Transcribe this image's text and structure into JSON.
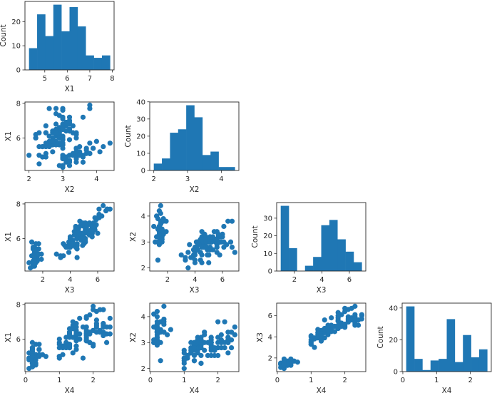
{
  "chart_data": {
    "type": "pairplot",
    "color": "#1f77b4",
    "variables": {
      "X1": [
        5.1,
        4.9,
        4.7,
        4.6,
        5.0,
        5.4,
        4.6,
        5.0,
        4.4,
        4.9,
        5.4,
        4.8,
        4.8,
        4.3,
        5.8,
        5.7,
        5.4,
        5.1,
        5.7,
        5.1,
        5.4,
        5.1,
        4.6,
        5.1,
        4.8,
        5.0,
        5.0,
        5.2,
        5.2,
        4.7,
        4.8,
        5.4,
        5.2,
        5.5,
        4.9,
        5.0,
        5.5,
        4.9,
        4.4,
        5.1,
        5.0,
        4.5,
        4.4,
        5.0,
        5.1,
        4.8,
        5.1,
        4.6,
        5.3,
        5.0,
        7.0,
        6.4,
        6.9,
        5.5,
        6.5,
        5.7,
        6.3,
        4.9,
        6.6,
        5.2,
        5.0,
        5.9,
        6.0,
        6.1,
        5.6,
        6.7,
        5.6,
        5.8,
        6.2,
        5.6,
        5.9,
        6.1,
        6.3,
        6.1,
        6.4,
        6.6,
        6.8,
        6.7,
        6.0,
        5.7,
        5.5,
        5.5,
        5.8,
        6.0,
        5.4,
        6.0,
        6.7,
        6.3,
        5.6,
        5.5,
        5.5,
        6.1,
        5.8,
        5.0,
        5.6,
        5.7,
        5.7,
        6.2,
        5.1,
        5.7,
        6.3,
        5.8,
        7.1,
        6.3,
        6.5,
        7.6,
        4.9,
        7.3,
        6.7,
        7.2,
        6.5,
        6.4,
        6.8,
        5.7,
        5.8,
        6.4,
        6.5,
        7.7,
        7.7,
        6.0,
        6.9,
        5.6,
        7.7,
        6.3,
        6.7,
        7.2,
        6.2,
        6.1,
        6.4,
        7.2,
        7.4,
        7.9,
        6.4,
        6.3,
        6.1,
        7.7,
        6.3,
        6.4,
        6.0,
        6.9,
        6.7,
        6.9,
        5.8,
        6.8,
        6.7,
        6.7,
        6.3,
        6.5,
        6.2,
        5.9
      ],
      "X2": [
        3.5,
        3.0,
        3.2,
        3.1,
        3.6,
        3.9,
        3.4,
        3.4,
        2.9,
        3.1,
        3.7,
        3.4,
        3.0,
        3.0,
        4.0,
        4.4,
        3.9,
        3.5,
        3.8,
        3.8,
        3.4,
        3.7,
        3.6,
        3.3,
        3.4,
        3.0,
        3.4,
        3.5,
        3.4,
        3.2,
        3.1,
        3.4,
        4.1,
        4.2,
        3.1,
        3.2,
        3.5,
        3.6,
        3.0,
        3.4,
        3.5,
        2.3,
        3.2,
        3.5,
        3.8,
        3.0,
        3.8,
        3.2,
        3.7,
        3.3,
        3.2,
        3.2,
        3.1,
        2.3,
        2.8,
        2.8,
        3.3,
        2.4,
        2.9,
        2.7,
        2.0,
        3.0,
        2.2,
        2.9,
        2.9,
        3.1,
        3.0,
        2.7,
        2.2,
        2.5,
        3.2,
        2.8,
        2.5,
        2.8,
        2.9,
        3.0,
        2.8,
        3.0,
        2.9,
        2.6,
        2.4,
        2.4,
        2.7,
        2.7,
        3.0,
        3.4,
        3.1,
        2.3,
        3.0,
        2.5,
        2.6,
        3.0,
        2.6,
        2.3,
        2.7,
        3.0,
        2.9,
        2.9,
        2.5,
        2.8,
        3.3,
        2.7,
        3.0,
        2.9,
        3.0,
        3.0,
        2.5,
        2.9,
        2.5,
        3.6,
        3.2,
        2.7,
        3.0,
        2.5,
        2.8,
        3.2,
        3.0,
        3.8,
        2.6,
        2.2,
        3.2,
        2.8,
        2.8,
        2.7,
        3.3,
        3.2,
        2.8,
        3.0,
        2.8,
        3.0,
        2.8,
        3.8,
        2.8,
        2.8,
        2.6,
        3.0,
        3.4,
        3.1,
        3.0,
        3.1,
        3.1,
        3.1,
        2.7,
        3.2,
        3.3,
        3.0,
        2.5,
        3.0,
        3.4,
        3.0
      ],
      "X3": [
        1.4,
        1.4,
        1.3,
        1.5,
        1.4,
        1.7,
        1.4,
        1.5,
        1.4,
        1.5,
        1.5,
        1.6,
        1.4,
        1.1,
        1.2,
        1.5,
        1.3,
        1.4,
        1.7,
        1.5,
        1.7,
        1.5,
        1.0,
        1.7,
        1.9,
        1.6,
        1.6,
        1.5,
        1.4,
        1.6,
        1.6,
        1.5,
        1.5,
        1.4,
        1.5,
        1.2,
        1.3,
        1.4,
        1.3,
        1.5,
        1.3,
        1.3,
        1.3,
        1.6,
        1.9,
        1.4,
        1.6,
        1.4,
        1.5,
        1.4,
        4.7,
        4.5,
        4.9,
        4.0,
        4.6,
        4.5,
        4.7,
        3.3,
        4.6,
        3.9,
        3.5,
        4.2,
        4.0,
        4.7,
        3.6,
        4.4,
        4.5,
        4.1,
        4.5,
        3.9,
        4.8,
        4.0,
        4.9,
        4.7,
        4.3,
        4.4,
        4.8,
        5.0,
        4.5,
        3.5,
        3.8,
        3.7,
        3.9,
        5.1,
        4.5,
        4.5,
        4.7,
        4.4,
        4.1,
        4.0,
        4.4,
        4.6,
        4.0,
        3.3,
        4.2,
        4.2,
        4.2,
        4.3,
        3.0,
        4.1,
        6.0,
        5.1,
        5.9,
        5.6,
        5.8,
        6.6,
        4.5,
        6.3,
        5.8,
        6.1,
        5.1,
        5.3,
        5.5,
        5.0,
        5.1,
        5.3,
        5.5,
        6.7,
        6.9,
        5.0,
        5.7,
        4.9,
        6.7,
        4.9,
        5.7,
        6.0,
        4.8,
        4.9,
        5.6,
        5.8,
        6.1,
        6.4,
        5.6,
        5.1,
        5.6,
        6.1,
        5.6,
        5.5,
        4.8,
        5.4,
        5.6,
        5.1,
        5.1,
        5.9,
        5.7,
        5.2,
        5.0,
        5.2,
        5.4,
        5.1
      ],
      "X4": [
        0.2,
        0.2,
        0.2,
        0.2,
        0.2,
        0.4,
        0.3,
        0.2,
        0.2,
        0.1,
        0.2,
        0.2,
        0.1,
        0.1,
        0.2,
        0.4,
        0.4,
        0.3,
        0.3,
        0.3,
        0.2,
        0.4,
        0.2,
        0.5,
        0.2,
        0.2,
        0.4,
        0.2,
        0.2,
        0.2,
        0.2,
        0.4,
        0.1,
        0.2,
        0.2,
        0.2,
        0.2,
        0.1,
        0.2,
        0.2,
        0.3,
        0.3,
        0.2,
        0.6,
        0.4,
        0.3,
        0.2,
        0.2,
        0.2,
        0.2,
        1.4,
        1.5,
        1.5,
        1.3,
        1.5,
        1.3,
        1.6,
        1.0,
        1.3,
        1.4,
        1.0,
        1.5,
        1.0,
        1.4,
        1.3,
        1.4,
        1.5,
        1.0,
        1.5,
        1.1,
        1.8,
        1.3,
        1.5,
        1.2,
        1.3,
        1.4,
        1.4,
        1.7,
        1.5,
        1.0,
        1.1,
        1.0,
        1.2,
        1.6,
        1.5,
        1.6,
        1.5,
        1.3,
        1.3,
        1.3,
        1.2,
        1.4,
        1.2,
        1.0,
        1.3,
        1.2,
        1.3,
        1.3,
        1.1,
        1.3,
        2.5,
        1.9,
        2.1,
        1.8,
        2.2,
        2.1,
        1.7,
        1.8,
        1.8,
        2.5,
        2.0,
        1.9,
        2.1,
        2.0,
        2.4,
        2.3,
        1.8,
        2.2,
        2.3,
        1.5,
        2.3,
        2.0,
        2.0,
        1.8,
        2.1,
        1.8,
        1.8,
        1.8,
        2.1,
        1.6,
        1.9,
        2.0,
        2.2,
        1.5,
        1.4,
        2.3,
        2.4,
        1.8,
        1.8,
        2.1,
        2.4,
        2.3,
        1.9,
        2.3,
        2.5,
        2.3,
        1.9,
        2.0,
        2.3,
        1.8
      ]
    },
    "histograms": {
      "X1": [
        9,
        23,
        14,
        27,
        16,
        26,
        18,
        6,
        5,
        6
      ],
      "X2": [
        4,
        7,
        22,
        24,
        38,
        31,
        9,
        11,
        2,
        2
      ],
      "X3": [
        37,
        13,
        0,
        3,
        8,
        26,
        29,
        18,
        11,
        5
      ],
      "X4": [
        41,
        8,
        1,
        7,
        8,
        33,
        6,
        23,
        9,
        14
      ]
    },
    "count_label": "Count",
    "x_ticks": {
      "X1": [
        "5",
        "6",
        "7",
        "8"
      ],
      "X2": [
        "2",
        "3",
        "4"
      ],
      "X3": [
        "2",
        "4",
        "6"
      ],
      "X4": [
        "0",
        "1",
        "2"
      ]
    },
    "y_ticks": {
      "X1": [
        "6",
        "8"
      ],
      "X2": [
        "2",
        "3",
        "4"
      ],
      "X3": [
        "2",
        "4",
        "6"
      ]
    },
    "count_ticks": {
      "X1": [
        "0",
        "10",
        "20"
      ],
      "X2": [
        "0",
        "10",
        "20",
        "30",
        "40"
      ],
      "X3": [
        "0",
        "10",
        "20",
        "30"
      ],
      "X4": [
        "0",
        "20",
        "40"
      ]
    },
    "panels": [
      {
        "type": "hist",
        "x": "X1",
        "xlabel": "X1",
        "ylabel": "Count"
      },
      {
        "type": "scatter",
        "x": "X2",
        "y": "X1",
        "xlabel": "X2",
        "ylabel": "X1"
      },
      {
        "type": "hist",
        "x": "X2",
        "xlabel": "X2",
        "ylabel": "Count"
      },
      {
        "type": "scatter",
        "x": "X3",
        "y": "X1",
        "xlabel": "X3",
        "ylabel": "X1"
      },
      {
        "type": "scatter",
        "x": "X3",
        "y": "X2",
        "xlabel": "X3",
        "ylabel": "X2"
      },
      {
        "type": "hist",
        "x": "X3",
        "xlabel": "X3",
        "ylabel": "Count"
      },
      {
        "type": "scatter",
        "x": "X4",
        "y": "X1",
        "xlabel": "X4",
        "ylabel": "X1"
      },
      {
        "type": "scatter",
        "x": "X4",
        "y": "X2",
        "xlabel": "X4",
        "ylabel": "X2"
      },
      {
        "type": "scatter",
        "x": "X4",
        "y": "X3",
        "xlabel": "X4",
        "ylabel": "X3"
      },
      {
        "type": "hist",
        "x": "X4",
        "xlabel": "X4",
        "ylabel": "Count"
      }
    ]
  }
}
